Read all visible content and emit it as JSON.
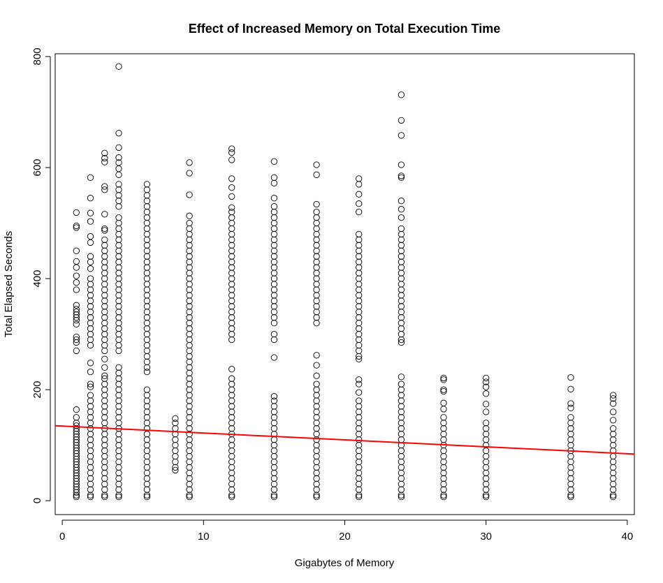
{
  "chart_data": {
    "type": "scatter",
    "title": "Effect of Increased Memory on Total Execution Time",
    "xlabel": "Gigabytes of Memory",
    "ylabel": "Total Elapsed Seconds",
    "xlim": [
      -0.5,
      40.5
    ],
    "ylim": [
      -25,
      805
    ],
    "xticks": [
      0,
      10,
      20,
      30,
      40
    ],
    "yticks": [
      0,
      200,
      400,
      600,
      800
    ],
    "grid": false,
    "legend": "none",
    "point_style": "open-circle",
    "point_color": "#000000",
    "regression_line": {
      "x": [
        -0.5,
        40.5
      ],
      "y": [
        135.0,
        84.0
      ],
      "color": "#ff0000"
    },
    "points": [
      {
        "x": 1,
        "y": [
          519,
          495,
          492,
          450,
          431,
          420,
          405,
          393,
          380,
          352,
          345,
          340,
          335,
          330,
          325,
          318,
          295,
          290,
          285,
          270,
          164,
          150,
          140,
          135,
          130,
          125,
          120,
          115,
          110,
          105,
          100,
          95,
          90,
          85,
          80,
          75,
          70,
          65,
          60,
          55,
          50,
          45,
          40,
          35,
          30,
          25,
          20,
          15,
          10,
          7
        ]
      },
      {
        "x": 2,
        "y": [
          582,
          545,
          518,
          503,
          476,
          465,
          440,
          430,
          418,
          400,
          390,
          380,
          370,
          360,
          350,
          340,
          330,
          320,
          310,
          300,
          290,
          280,
          248,
          232,
          210,
          205,
          190,
          180,
          170,
          160,
          150,
          140,
          130,
          120,
          110,
          100,
          90,
          80,
          70,
          60,
          50,
          40,
          30,
          20,
          10,
          7
        ]
      },
      {
        "x": 3,
        "y": [
          626,
          617,
          610,
          566,
          560,
          516,
          490,
          487,
          470,
          460,
          450,
          440,
          430,
          420,
          410,
          400,
          390,
          380,
          370,
          360,
          350,
          340,
          330,
          320,
          310,
          300,
          290,
          280,
          270,
          255,
          240,
          225,
          220,
          210,
          200,
          190,
          180,
          170,
          160,
          150,
          140,
          130,
          120,
          110,
          100,
          90,
          80,
          70,
          60,
          50,
          40,
          30,
          20,
          10,
          7
        ]
      },
      {
        "x": 4,
        "y": [
          782,
          662,
          636,
          618,
          609,
          598,
          587,
          570,
          560,
          550,
          540,
          530,
          510,
          500,
          490,
          480,
          470,
          460,
          450,
          440,
          430,
          420,
          410,
          400,
          390,
          380,
          370,
          360,
          350,
          340,
          330,
          320,
          310,
          300,
          290,
          280,
          270,
          240,
          230,
          220,
          210,
          200,
          190,
          180,
          170,
          160,
          150,
          140,
          130,
          120,
          110,
          100,
          90,
          80,
          70,
          60,
          50,
          40,
          30,
          20,
          10,
          7
        ]
      },
      {
        "x": 6,
        "y": [
          570,
          560,
          550,
          540,
          530,
          520,
          510,
          500,
          490,
          480,
          470,
          460,
          450,
          440,
          430,
          420,
          410,
          400,
          390,
          380,
          370,
          360,
          350,
          340,
          330,
          320,
          310,
          300,
          290,
          280,
          270,
          260,
          250,
          240,
          232,
          200,
          190,
          180,
          170,
          160,
          150,
          140,
          130,
          120,
          110,
          100,
          90,
          80,
          70,
          60,
          50,
          40,
          30,
          20,
          10,
          7
        ]
      },
      {
        "x": 8,
        "y": [
          148,
          140,
          130,
          120,
          110,
          100,
          90,
          80,
          70,
          60,
          55
        ]
      },
      {
        "x": 9,
        "y": [
          609,
          590,
          551,
          513,
          500,
          490,
          480,
          470,
          460,
          450,
          440,
          430,
          420,
          410,
          400,
          390,
          380,
          370,
          360,
          350,
          340,
          330,
          320,
          310,
          300,
          290,
          280,
          270,
          260,
          250,
          240,
          230,
          220,
          210,
          200,
          190,
          180,
          170,
          160,
          150,
          140,
          130,
          120,
          110,
          100,
          90,
          80,
          70,
          60,
          50,
          40,
          30,
          20,
          10,
          7
        ]
      },
      {
        "x": 12,
        "y": [
          634,
          627,
          614,
          580,
          564,
          548,
          528,
          520,
          510,
          500,
          490,
          480,
          470,
          460,
          450,
          440,
          430,
          420,
          410,
          400,
          390,
          380,
          370,
          360,
          350,
          340,
          330,
          320,
          310,
          300,
          290,
          237,
          220,
          210,
          200,
          190,
          180,
          170,
          160,
          150,
          140,
          130,
          120,
          110,
          100,
          90,
          80,
          70,
          60,
          50,
          40,
          30,
          20,
          10,
          7
        ]
      },
      {
        "x": 15,
        "y": [
          611,
          582,
          572,
          545,
          530,
          520,
          510,
          500,
          490,
          480,
          470,
          460,
          450,
          440,
          430,
          420,
          410,
          400,
          390,
          380,
          370,
          360,
          350,
          340,
          330,
          320,
          300,
          290,
          258,
          188,
          180,
          170,
          160,
          150,
          140,
          130,
          120,
          110,
          100,
          90,
          80,
          70,
          60,
          50,
          40,
          30,
          20,
          10,
          7
        ]
      },
      {
        "x": 18,
        "y": [
          605,
          587,
          534,
          520,
          510,
          500,
          490,
          480,
          470,
          460,
          450,
          440,
          430,
          420,
          410,
          400,
          390,
          380,
          370,
          360,
          350,
          340,
          330,
          320,
          262,
          244,
          225,
          210,
          200,
          190,
          180,
          170,
          160,
          150,
          140,
          130,
          120,
          110,
          100,
          90,
          80,
          70,
          60,
          50,
          40,
          30,
          20,
          10,
          7
        ]
      },
      {
        "x": 21,
        "y": [
          580,
          570,
          552,
          535,
          520,
          480,
          470,
          460,
          450,
          440,
          430,
          420,
          410,
          400,
          390,
          380,
          370,
          360,
          350,
          340,
          330,
          320,
          310,
          300,
          290,
          280,
          270,
          260,
          255,
          218,
          210,
          195,
          180,
          170,
          160,
          150,
          140,
          130,
          120,
          110,
          100,
          90,
          80,
          70,
          60,
          50,
          40,
          30,
          20,
          10,
          7
        ]
      },
      {
        "x": 24,
        "y": [
          731,
          685,
          658,
          605,
          585,
          582,
          540,
          525,
          510,
          490,
          480,
          470,
          460,
          450,
          440,
          430,
          420,
          410,
          400,
          390,
          380,
          370,
          360,
          350,
          340,
          330,
          320,
          310,
          300,
          290,
          285,
          223,
          210,
          200,
          190,
          180,
          170,
          160,
          150,
          140,
          130,
          120,
          110,
          100,
          90,
          80,
          70,
          60,
          50,
          40,
          30,
          20,
          10,
          7
        ]
      },
      {
        "x": 27,
        "y": [
          221,
          218,
          200,
          197,
          176,
          165,
          150,
          140,
          130,
          120,
          110,
          100,
          90,
          80,
          70,
          60,
          50,
          40,
          30,
          20,
          10,
          7
        ]
      },
      {
        "x": 30,
        "y": [
          221,
          214,
          205,
          193,
          174,
          160,
          140,
          130,
          120,
          110,
          100,
          90,
          80,
          70,
          60,
          50,
          40,
          30,
          20,
          10,
          7
        ]
      },
      {
        "x": 36,
        "y": [
          222,
          201,
          175,
          167,
          150,
          140,
          130,
          120,
          110,
          100,
          90,
          80,
          70,
          60,
          50,
          40,
          30,
          20,
          10,
          7
        ]
      },
      {
        "x": 39,
        "y": [
          190,
          184,
          175,
          160,
          145,
          130,
          120,
          110,
          100,
          90,
          80,
          70,
          60,
          50,
          40,
          30,
          20,
          10,
          7
        ]
      }
    ]
  }
}
